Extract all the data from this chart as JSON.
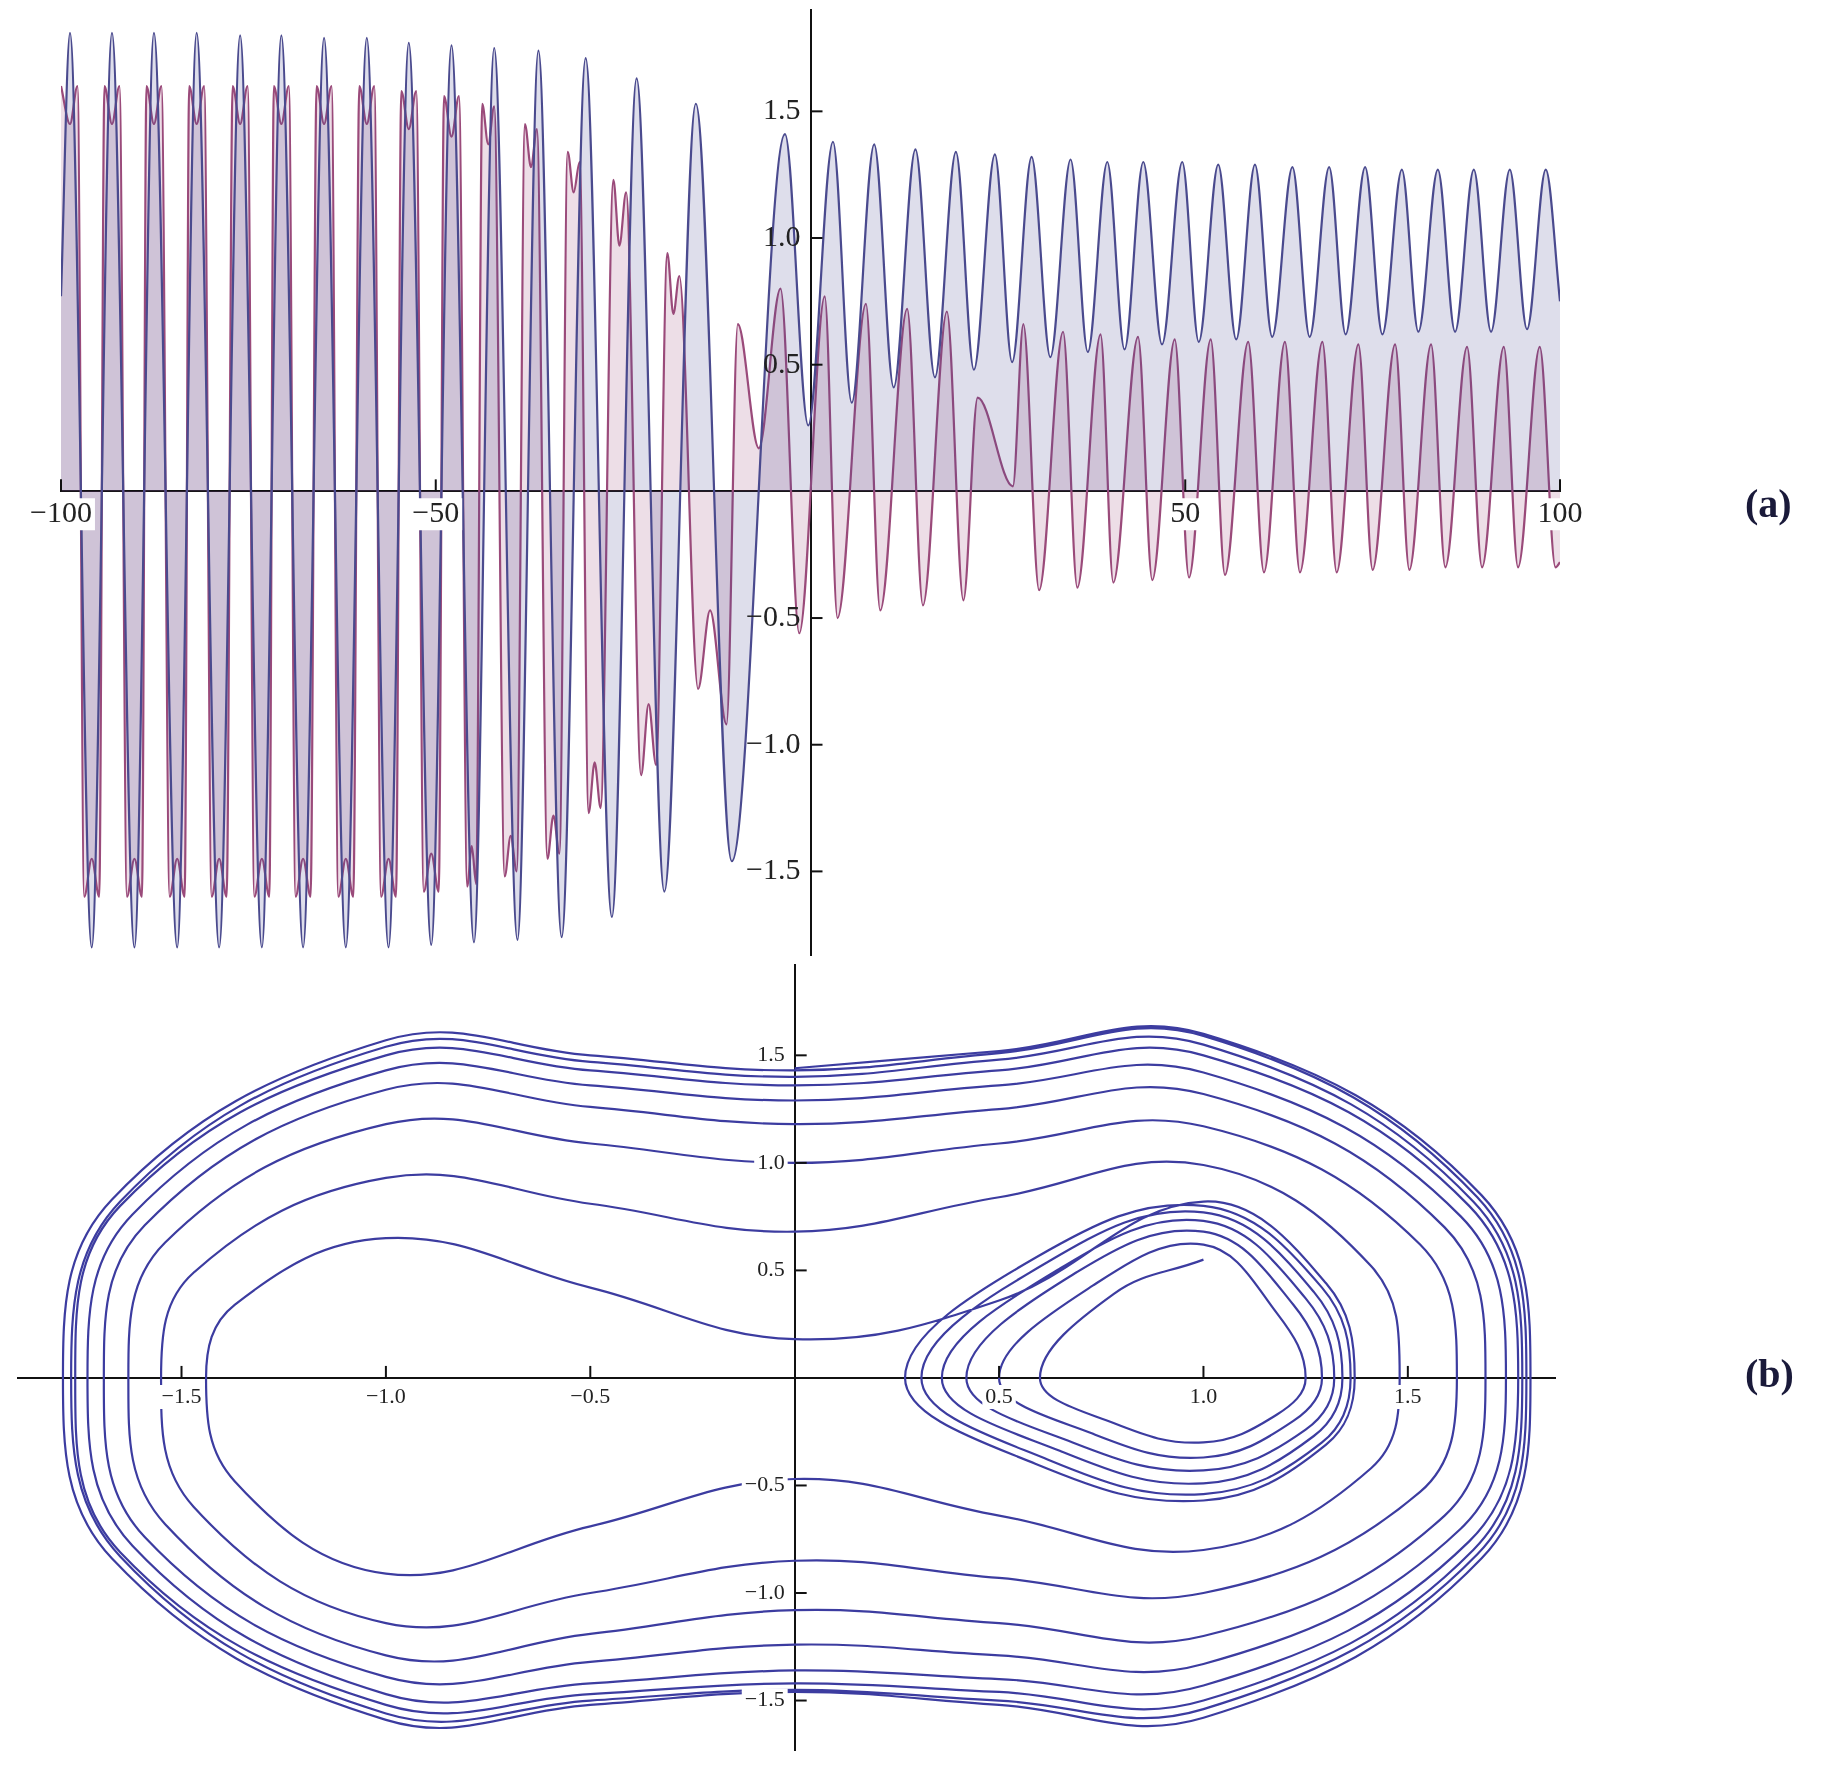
{
  "chart_data": [
    {
      "type": "area",
      "xlim": [
        -100,
        100
      ],
      "ylim": [
        -1.83,
        1.9
      ],
      "xticks": [
        {
          "value": -100,
          "label": "−100"
        },
        {
          "value": -50,
          "label": "−50"
        },
        {
          "value": 50,
          "label": "50"
        },
        {
          "value": 100,
          "label": "100"
        }
      ],
      "yticks": [
        {
          "value": -1.5,
          "label": "−1.5"
        },
        {
          "value": -1,
          "label": "−1.0"
        },
        {
          "value": -0.5,
          "label": "−0.5"
        },
        {
          "value": 0.5,
          "label": "0.5"
        },
        {
          "value": 1,
          "label": "1.0"
        },
        {
          "value": 1.5,
          "label": "1.5"
        }
      ],
      "grid": false,
      "marker": "none",
      "annotations": [
        "(a)"
      ],
      "series": [
        {
          "color": "#4a4a8e",
          "x": [
            -100,
            -98.8,
            -95.9,
            -93.2,
            -90.2,
            -87.6,
            -84.5,
            -81.9,
            -78.9,
            -76.1,
            -73.2,
            -70.6,
            -67.7,
            -64.9,
            -62.0,
            -59.2,
            -56.3,
            -53.6,
            -50.6,
            -47.9,
            -44.9,
            -42.2,
            -39.1,
            -36.3,
            -33.2,
            -30.0,
            -26.5,
            -23.2,
            -19.5,
            -15.3,
            -10.5,
            -3.4,
            -0.3,
            3.0,
            5.5,
            8.5,
            11.1,
            14.0,
            16.6,
            19.4,
            21.8,
            24.6,
            26.9,
            29.5,
            32.0,
            34.7,
            37.0,
            39.6,
            41.9,
            44.4,
            46.9,
            49.6,
            51.8,
            54.4,
            56.8,
            59.3,
            61.6,
            64.3,
            66.6,
            69.2,
            71.4,
            74.0,
            76.3,
            78.9,
            81.1,
            83.7,
            86.0,
            88.5,
            90.8,
            93.3,
            95.6,
            98.1,
            100
          ],
          "values": [
            0.77,
            1.81,
            -1.8,
            1.81,
            -1.8,
            1.81,
            -1.8,
            1.81,
            -1.8,
            1.8,
            -1.8,
            1.8,
            -1.8,
            1.79,
            -1.8,
            1.79,
            -1.8,
            1.77,
            -1.79,
            1.76,
            -1.78,
            1.75,
            -1.77,
            1.74,
            -1.76,
            1.71,
            -1.68,
            1.63,
            -1.58,
            1.53,
            -1.46,
            1.41,
            0.26,
            1.38,
            0.35,
            1.37,
            0.41,
            1.35,
            0.45,
            1.34,
            0.48,
            1.33,
            0.51,
            1.32,
            0.53,
            1.31,
            0.55,
            1.3,
            0.56,
            1.3,
            0.58,
            1.3,
            0.59,
            1.29,
            0.6,
            1.29,
            0.61,
            1.28,
            0.61,
            1.28,
            0.62,
            1.28,
            0.62,
            1.27,
            0.63,
            1.27,
            0.63,
            1.27,
            0.63,
            1.27,
            0.64,
            1.27,
            0.75
          ]
        },
        {
          "color": "#9a4a7a",
          "x": [
            -100,
            -98.8,
            -97.8,
            -96.9,
            -95.9,
            -94.9,
            -94.2,
            -93.2,
            -92.2,
            -91.2,
            -90.2,
            -89.2,
            -88.6,
            -87.6,
            -86.6,
            -85.5,
            -84.5,
            -83.5,
            -82.9,
            -81.9,
            -80.9,
            -79.9,
            -78.9,
            -77.9,
            -77.1,
            -76.1,
            -75.1,
            -74.2,
            -73.2,
            -72.2,
            -71.6,
            -70.6,
            -69.6,
            -68.7,
            -67.7,
            -66.7,
            -65.9,
            -64.9,
            -63.9,
            -63.0,
            -62.0,
            -61.0,
            -60.2,
            -59.2,
            -58.2,
            -57.3,
            -56.3,
            -55.3,
            -54.6,
            -53.6,
            -52.6,
            -51.6,
            -50.6,
            -49.6,
            -48.9,
            -47.9,
            -46.9,
            -45.8,
            -45.2,
            -44.6,
            -43.8,
            -43.0,
            -42.2,
            -40.8,
            -40.0,
            -39.2,
            -38.1,
            -37.3,
            -36.5,
            -35.1,
            -34.3,
            -33.5,
            -32.4,
            -31.6,
            -30.8,
            -29.6,
            -28.8,
            -28.0,
            -26.3,
            -25.5,
            -24.6,
            -22.6,
            -21.6,
            -20.6,
            -19.1,
            -18.3,
            -17.5,
            -15.0,
            -13.4,
            -11.2,
            -9.7,
            -6.9,
            -4.0,
            -1.5,
            1.9,
            3.6,
            7.4,
            9.3,
            12.9,
            15.0,
            18.2,
            20.4,
            22.3,
            27.0,
            28.4,
            30.5,
            33.7,
            35.6,
            38.7,
            40.4,
            43.7,
            45.6,
            48.6,
            50.5,
            53.4,
            55.3,
            58.4,
            60.5,
            63.3,
            65.3,
            68.3,
            70.2,
            73.1,
            75.0,
            78.0,
            79.9,
            82.8,
            84.7,
            87.6,
            89.6,
            92.5,
            94.4,
            97.3,
            99.4,
            100
          ],
          "values": [
            1.6,
            1.45,
            1.6,
            -1.6,
            -1.45,
            -1.6,
            1.6,
            1.45,
            1.6,
            -1.6,
            -1.45,
            -1.6,
            1.6,
            1.45,
            1.6,
            -1.6,
            -1.45,
            -1.6,
            1.6,
            1.45,
            1.6,
            -1.6,
            -1.45,
            -1.6,
            1.6,
            1.45,
            1.6,
            -1.6,
            -1.45,
            -1.6,
            1.6,
            1.45,
            1.6,
            -1.6,
            -1.45,
            -1.6,
            1.6,
            1.45,
            1.6,
            -1.6,
            -1.45,
            -1.6,
            1.6,
            1.45,
            1.6,
            -1.6,
            -1.45,
            -1.6,
            1.58,
            1.43,
            1.58,
            -1.58,
            -1.43,
            -1.58,
            1.56,
            1.4,
            1.56,
            -1.56,
            -1.4,
            -1.55,
            1.53,
            1.37,
            1.52,
            -1.52,
            -1.36,
            -1.5,
            1.45,
            1.28,
            1.43,
            -1.45,
            -1.28,
            -1.43,
            1.34,
            1.18,
            1.3,
            -1.27,
            -1.07,
            -1.25,
            1.23,
            0.97,
            1.18,
            -1.12,
            -0.84,
            -1.08,
            0.94,
            0.7,
            0.85,
            -0.78,
            -0.47,
            -0.92,
            0.66,
            0.17,
            0.8,
            -0.56,
            0.77,
            -0.5,
            0.74,
            -0.47,
            0.72,
            -0.45,
            0.71,
            -0.43,
            0.37,
            0.02,
            0.66,
            -0.39,
            0.63,
            -0.38,
            0.62,
            -0.36,
            0.61,
            -0.35,
            0.6,
            -0.34,
            0.6,
            -0.33,
            0.59,
            -0.32,
            0.59,
            -0.32,
            0.59,
            -0.32,
            0.58,
            -0.31,
            0.58,
            -0.31,
            0.58,
            -0.3,
            0.57,
            -0.3,
            0.57,
            -0.3,
            0.57,
            -0.3,
            -0.28
          ]
        }
      ]
    },
    {
      "type": "line",
      "xlim": [
        -1.9,
        1.86
      ],
      "ylim": [
        -1.73,
        1.92
      ],
      "xticks": [
        {
          "value": -1.5,
          "label": "−1.5"
        },
        {
          "value": -1,
          "label": "−1.0"
        },
        {
          "value": -0.5,
          "label": "−0.5"
        },
        0.5,
        {
          "value": 1,
          "label": "1.0"
        },
        1.5
      ],
      "yticks": [
        {
          "value": -1.5,
          "label": "−1.5"
        },
        {
          "value": -1,
          "label": "−1.0"
        },
        {
          "value": -0.5,
          "label": "−0.5"
        },
        0.5,
        {
          "value": 1,
          "label": "1.0"
        },
        1.5
      ],
      "grid": false,
      "marker": "none",
      "annotations": [
        "(b)"
      ],
      "series": [
        {
          "color": "#3c3ca0",
          "x": [
            1,
            0.78,
            0.6,
            0.78,
            1,
            1.18,
            1.25,
            1.18,
            1,
            0.73,
            0.5,
            0.73,
            1,
            1.22,
            1.29,
            1.22,
            1,
            0.68,
            0.42,
            0.68,
            1,
            1.25,
            1.32,
            1.25,
            1,
            0.65,
            0.36,
            0.65,
            1,
            1.27,
            1.34,
            1.27,
            1,
            0.62,
            0.31,
            0.62,
            1,
            1.29,
            1.36,
            1.29,
            1,
            0.59,
            0.27,
            0.59,
            1,
            1.3,
            1.37,
            1.3,
            1,
            0.5,
            0,
            -0.5,
            -1,
            -1.37,
            -1.44,
            -1.37,
            -1,
            -0.5,
            0,
            0.5,
            1,
            1.41,
            1.48,
            1.41,
            1,
            0.5,
            0,
            -0.5,
            -1,
            -1.47,
            -1.55,
            -1.47,
            -1,
            -0.5,
            0,
            0.5,
            1,
            1.53,
            1.62,
            1.53,
            1,
            0.5,
            0,
            -0.5,
            -1,
            -1.54,
            -1.63,
            -1.54,
            -1,
            -0.5,
            0,
            0.5,
            1,
            1.59,
            1.69,
            1.59,
            1,
            0.5,
            0,
            -0.5,
            -1,
            -1.59,
            -1.69,
            -1.59,
            -1,
            -0.5,
            0,
            0.5,
            1,
            1.63,
            1.74,
            1.63,
            1,
            0.5,
            0,
            -0.5,
            -1,
            -1.62,
            -1.73,
            -1.62,
            -1,
            -0.5,
            0,
            0.5,
            1,
            1.65,
            1.77,
            1.65,
            1,
            0.5,
            0,
            -0.5,
            -1,
            -1.65,
            -1.76,
            -1.65,
            -1,
            -0.5,
            0,
            0.5,
            1,
            1.66,
            1.78,
            1.66,
            1,
            0.5,
            0,
            -0.5,
            -1,
            -1.65,
            -1.77,
            -1.65,
            -1,
            -0.5,
            0,
            0.5,
            1,
            1.67,
            1.79,
            1.67,
            1,
            0.5,
            0,
            -0.5,
            -1,
            -1.67,
            -1.79,
            -1.67,
            -1,
            -0.5,
            0,
            0.5,
            1,
            1.68,
            1.8,
            1.68,
            1,
            0.5,
            0
          ],
          "values": [
            0.55,
            0.39,
            0,
            -0.21,
            -0.3,
            -0.17,
            0,
            0.3,
            0.62,
            0.43,
            0,
            -0.26,
            -0.37,
            -0.2,
            0,
            0.34,
            0.68,
            0.48,
            0,
            -0.3,
            -0.43,
            -0.24,
            0,
            0.37,
            0.73,
            0.51,
            0,
            -0.34,
            -0.49,
            -0.27,
            0,
            0.4,
            0.77,
            0.54,
            0,
            -0.38,
            -0.54,
            -0.3,
            0,
            0.42,
            0.8,
            0.56,
            0,
            -0.4,
            -0.57,
            -0.31,
            0,
            0.44,
            0.82,
            0.36,
            0.18,
            0.42,
            0.65,
            0.34,
            0,
            -0.48,
            -0.91,
            -0.69,
            -0.47,
            -0.64,
            -0.8,
            -0.42,
            0,
            0.52,
            0.99,
            0.84,
            0.68,
            0.81,
            0.93,
            0.49,
            0,
            -0.6,
            -1.14,
            -1.0,
            -0.85,
            -0.93,
            -1.0,
            -0.53,
            0,
            0.62,
            1.17,
            1.09,
            1.0,
            1.09,
            1.18,
            0.63,
            0,
            -0.68,
            -1.29,
            -1.19,
            -1.08,
            -1.14,
            -1.2,
            -0.64,
            0,
            0.7,
            1.32,
            1.25,
            1.18,
            1.26,
            1.34,
            0.71,
            0,
            -0.74,
            -1.39,
            -1.32,
            -1.24,
            -1.29,
            -1.33,
            -0.7,
            0,
            0.75,
            1.42,
            1.36,
            1.29,
            1.36,
            1.43,
            0.76,
            0,
            -0.78,
            -1.47,
            -1.42,
            -1.36,
            -1.4,
            -1.43,
            -0.76,
            0,
            0.8,
            1.5,
            1.43,
            1.36,
            1.43,
            1.5,
            0.8,
            0,
            -0.81,
            -1.52,
            -1.47,
            -1.42,
            -1.46,
            -1.5,
            -0.8,
            0,
            0.82,
            1.55,
            1.48,
            1.4,
            1.47,
            1.54,
            0.82,
            0,
            -0.83,
            -1.56,
            -1.5,
            -1.45,
            -1.5,
            -1.54,
            -0.82,
            0,
            0.84,
            1.59,
            1.51,
            1.43,
            1.5,
            1.57,
            0.83,
            0,
            -0.84,
            -1.59,
            -1.52,
            -1.46,
            -1.52,
            -1.58,
            -0.84,
            0,
            0.85,
            1.6,
            1.52,
            1.44
          ]
        }
      ]
    }
  ]
}
